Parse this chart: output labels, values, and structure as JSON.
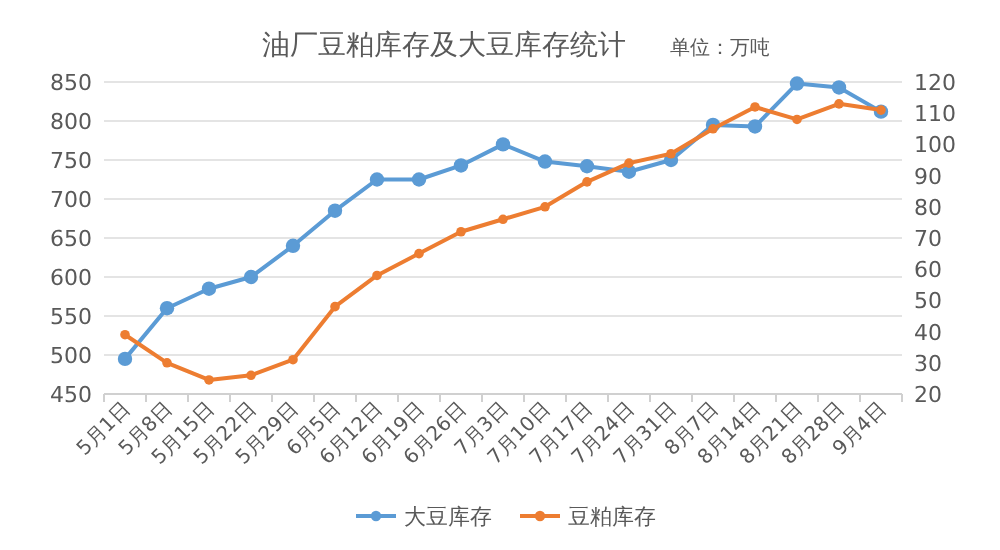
{
  "chart_data": {
    "type": "line",
    "title": "油厂豆粕库存及大豆库存统计",
    "annotations": [
      "单位：万吨"
    ],
    "categories": [
      "5月1日",
      "5月8日",
      "5月15日",
      "5月22日",
      "5月29日",
      "6月5日",
      "6月12日",
      "6月19日",
      "6月26日",
      "7月3日",
      "7月10日",
      "7月17日",
      "7月24日",
      "7月31日",
      "8月7日",
      "8月14日",
      "8月21日",
      "8月28日",
      "9月4日"
    ],
    "series": [
      {
        "name": "大豆库存",
        "color": "#5b9bd5",
        "values": [
          495,
          560,
          585,
          600,
          640,
          685,
          725,
          725,
          743,
          770,
          748,
          742,
          735,
          750,
          795,
          793,
          848,
          843,
          812
        ]
      },
      {
        "name": "豆粕库存",
        "color": "#ed7d31",
        "axis": "y2",
        "values": [
          39,
          30,
          24.5,
          26,
          31,
          48,
          58,
          65,
          72,
          76,
          80,
          88,
          94,
          97,
          105,
          112,
          108,
          113,
          111
        ]
      }
    ],
    "ylim": [
      450,
      850
    ],
    "yticks": [
      450,
      500,
      550,
      600,
      650,
      700,
      750,
      800,
      850
    ],
    "y2lim": [
      20,
      120
    ],
    "y2ticks": [
      20,
      30,
      40,
      50,
      60,
      70,
      80,
      90,
      100,
      110,
      120
    ],
    "grid": "y",
    "legend": "bottom",
    "marker": "circle",
    "line_style": "solid"
  }
}
